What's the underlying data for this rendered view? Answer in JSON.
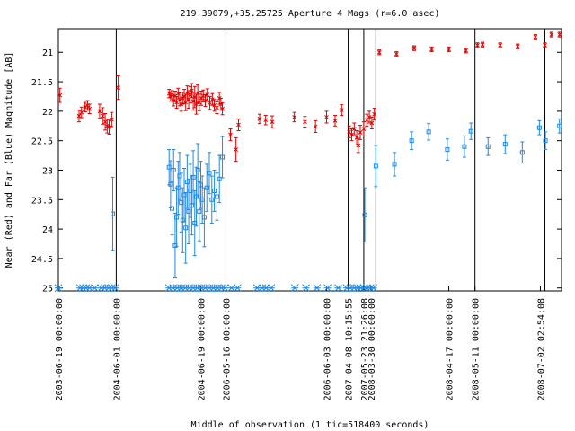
{
  "chart_data": {
    "type": "scatter",
    "title": "219.39079,+35.25725   Aperture 4 Mags (r=6.0 asec)",
    "xlabel": "Middle of observation (1 tic=518400 seconds)",
    "ylabel": "Near (Red) and Far (Blue) Magnitude [AB]",
    "ylim": [
      25.05,
      20.6
    ],
    "y_ticks": [
      21,
      21.5,
      22,
      22.5,
      23,
      23.5,
      24,
      24.5,
      25
    ],
    "x_range": [
      0,
      100
    ],
    "grid": false,
    "legend": "none",
    "colors": {
      "near": "#e00000",
      "far": "#1e88e5"
    },
    "x_tick_labels": [
      {
        "x": 0,
        "label": "2003-06-19 00:00:00"
      },
      {
        "x": 11.5,
        "label": "2004-06-01 00:00:00"
      },
      {
        "x": 28.3,
        "label": "2004-06-19 00:00:00"
      },
      {
        "x": 33.3,
        "label": "2006-05-16 00:00:00"
      },
      {
        "x": 53.3,
        "label": "2006-06-03 00:00:00"
      },
      {
        "x": 57.6,
        "label": "2007-04-08 10:15:55"
      },
      {
        "x": 60.7,
        "label": "2007-05-23 21:26:08"
      },
      {
        "x": 62.1,
        "label": "2008-03-30 00:00:00"
      },
      {
        "x": 77.6,
        "label": "2008-04-17 00:00:00"
      },
      {
        "x": 82.8,
        "label": "2008-05-11 00:00:00"
      },
      {
        "x": 95.8,
        "label": "2008-07-02 02:54:08"
      }
    ],
    "vlines": [
      11.5,
      33.3,
      57.6,
      60.7,
      63.1,
      82.8,
      96.7
    ],
    "series": [
      {
        "key": "near",
        "points": [
          [
            0.3,
            21.73,
            0.12
          ],
          [
            4.1,
            22.08,
            0.1
          ],
          [
            4.6,
            22.02,
            0.09
          ],
          [
            5.3,
            21.93,
            0.08
          ],
          [
            5.8,
            21.9,
            0.08
          ],
          [
            6.2,
            21.96,
            0.08
          ],
          [
            8.2,
            22.0,
            0.12
          ],
          [
            8.8,
            22.08,
            0.14
          ],
          [
            9.3,
            22.18,
            0.14
          ],
          [
            9.7,
            22.25,
            0.12
          ],
          [
            10.1,
            22.27,
            0.12
          ],
          [
            10.6,
            22.14,
            0.12
          ],
          [
            11.9,
            21.6,
            0.2
          ],
          [
            22.0,
            21.7,
            0.07
          ],
          [
            22.3,
            21.75,
            0.08
          ],
          [
            22.6,
            21.72,
            0.07
          ],
          [
            22.9,
            21.82,
            0.09
          ],
          [
            23.2,
            21.74,
            0.08
          ],
          [
            23.5,
            21.85,
            0.1
          ],
          [
            23.8,
            21.7,
            0.09
          ],
          [
            24.1,
            21.8,
            0.11
          ],
          [
            24.4,
            21.88,
            0.12
          ],
          [
            24.7,
            21.78,
            0.1
          ],
          [
            25.0,
            21.75,
            0.12
          ],
          [
            25.3,
            21.85,
            0.14
          ],
          [
            25.6,
            21.7,
            0.13
          ],
          [
            25.9,
            21.8,
            0.15
          ],
          [
            26.2,
            21.72,
            0.14
          ],
          [
            26.5,
            21.65,
            0.12
          ],
          [
            26.8,
            21.83,
            0.15
          ],
          [
            27.1,
            21.76,
            0.18
          ],
          [
            27.4,
            21.88,
            0.17
          ],
          [
            27.7,
            21.7,
            0.15
          ],
          [
            28.0,
            21.85,
            0.14
          ],
          [
            28.4,
            21.78,
            0.12
          ],
          [
            28.8,
            21.74,
            0.1
          ],
          [
            29.2,
            21.82,
            0.1
          ],
          [
            29.6,
            21.72,
            0.1
          ],
          [
            30.1,
            21.86,
            0.11
          ],
          [
            30.6,
            21.8,
            0.1
          ],
          [
            31.0,
            21.9,
            0.1
          ],
          [
            31.5,
            21.94,
            0.1
          ],
          [
            32.0,
            21.78,
            0.1
          ],
          [
            32.3,
            21.88,
            0.1
          ],
          [
            32.6,
            21.96,
            0.1
          ],
          [
            34.2,
            22.4,
            0.1
          ],
          [
            35.3,
            22.65,
            0.2
          ],
          [
            35.8,
            22.23,
            0.1
          ],
          [
            40.0,
            22.13,
            0.08
          ],
          [
            41.2,
            22.15,
            0.08
          ],
          [
            42.5,
            22.18,
            0.1
          ],
          [
            46.9,
            22.1,
            0.08
          ],
          [
            49.0,
            22.18,
            0.09
          ],
          [
            51.1,
            22.26,
            0.1
          ],
          [
            53.3,
            22.1,
            0.1
          ],
          [
            55.0,
            22.16,
            0.09
          ],
          [
            56.3,
            21.98,
            0.09
          ],
          [
            57.8,
            22.35,
            0.1
          ],
          [
            58.3,
            22.4,
            0.1
          ],
          [
            58.8,
            22.3,
            0.1
          ],
          [
            59.3,
            22.45,
            0.12
          ],
          [
            59.6,
            22.58,
            0.12
          ],
          [
            60.0,
            22.36,
            0.12
          ],
          [
            60.7,
            22.3,
            0.12
          ],
          [
            61.3,
            22.15,
            0.1
          ],
          [
            61.8,
            22.1,
            0.1
          ],
          [
            62.3,
            22.2,
            0.1
          ],
          [
            62.8,
            22.05,
            0.1
          ],
          [
            63.8,
            21.0,
            0.04
          ],
          [
            67.2,
            21.03,
            0.04
          ],
          [
            70.7,
            20.93,
            0.04
          ],
          [
            74.2,
            20.95,
            0.04
          ],
          [
            77.6,
            20.95,
            0.04
          ],
          [
            81.0,
            20.97,
            0.04
          ],
          [
            83.3,
            20.88,
            0.04
          ],
          [
            84.3,
            20.87,
            0.04
          ],
          [
            87.8,
            20.88,
            0.04
          ],
          [
            91.3,
            20.9,
            0.04
          ],
          [
            94.8,
            20.74,
            0.04
          ],
          [
            96.7,
            20.88,
            0.04
          ],
          [
            98.0,
            20.7,
            0.04
          ],
          [
            99.6,
            20.7,
            0.04
          ]
        ]
      },
      {
        "key": "far",
        "points": [
          [
            10.8,
            23.74,
            0.62
          ],
          [
            22.0,
            22.95,
            0.3
          ],
          [
            22.3,
            23.24,
            0.4
          ],
          [
            22.6,
            23.65,
            0.45
          ],
          [
            22.9,
            23.0,
            0.35
          ],
          [
            23.2,
            24.28,
            0.55
          ],
          [
            23.5,
            23.8,
            0.5
          ],
          [
            23.8,
            23.3,
            0.45
          ],
          [
            24.1,
            23.1,
            0.4
          ],
          [
            24.4,
            23.55,
            0.5
          ],
          [
            24.7,
            23.85,
            0.55
          ],
          [
            25.0,
            23.42,
            0.45
          ],
          [
            25.3,
            23.98,
            0.6
          ],
          [
            25.6,
            23.2,
            0.45
          ],
          [
            25.9,
            23.7,
            0.55
          ],
          [
            26.2,
            23.35,
            0.45
          ],
          [
            26.5,
            23.6,
            0.5
          ],
          [
            26.8,
            23.12,
            0.45
          ],
          [
            27.1,
            23.9,
            0.55
          ],
          [
            27.4,
            23.45,
            0.5
          ],
          [
            27.7,
            23.0,
            0.45
          ],
          [
            28.0,
            23.7,
            0.5
          ],
          [
            28.3,
            23.25,
            0.4
          ],
          [
            28.6,
            23.5,
            0.4
          ],
          [
            29.0,
            23.8,
            0.5
          ],
          [
            29.5,
            23.3,
            0.4
          ],
          [
            30.0,
            23.05,
            0.35
          ],
          [
            30.5,
            23.5,
            0.4
          ],
          [
            31.0,
            23.35,
            0.35
          ],
          [
            31.5,
            23.45,
            0.4
          ],
          [
            32.0,
            23.15,
            0.4
          ],
          [
            32.6,
            22.78,
            0.35
          ],
          [
            60.9,
            23.76,
            0.46
          ],
          [
            63.1,
            22.93,
            0.35
          ],
          [
            66.8,
            22.9,
            0.2
          ],
          [
            70.2,
            22.5,
            0.15
          ],
          [
            73.6,
            22.35,
            0.14
          ],
          [
            77.3,
            22.65,
            0.18
          ],
          [
            80.7,
            22.6,
            0.18
          ],
          [
            82.0,
            22.34,
            0.14
          ],
          [
            85.4,
            22.6,
            0.15
          ],
          [
            88.8,
            22.56,
            0.16
          ],
          [
            92.2,
            22.7,
            0.18
          ],
          [
            95.6,
            22.28,
            0.12
          ],
          [
            96.8,
            22.5,
            0.15
          ],
          [
            99.6,
            22.25,
            0.12
          ]
        ]
      },
      {
        "key": "far_limits",
        "points": [
          [
            0.0,
            25.0
          ],
          [
            4.3,
            25.0
          ],
          [
            4.9,
            25.0
          ],
          [
            5.5,
            25.0
          ],
          [
            6.2,
            25.0
          ],
          [
            7.2,
            25.0
          ],
          [
            8.5,
            25.0
          ],
          [
            9.2,
            25.0
          ],
          [
            10.0,
            25.0
          ],
          [
            10.6,
            25.0
          ],
          [
            11.3,
            25.0
          ],
          [
            22.0,
            25.0
          ],
          [
            22.8,
            25.0
          ],
          [
            23.6,
            25.0
          ],
          [
            24.4,
            25.0
          ],
          [
            25.2,
            25.0
          ],
          [
            26.0,
            25.0
          ],
          [
            26.8,
            25.0
          ],
          [
            27.6,
            25.0
          ],
          [
            28.4,
            25.0
          ],
          [
            29.2,
            25.0
          ],
          [
            30.0,
            25.0
          ],
          [
            30.8,
            25.0
          ],
          [
            31.6,
            25.0
          ],
          [
            32.4,
            25.0
          ],
          [
            33.1,
            25.0
          ],
          [
            34.4,
            25.0
          ],
          [
            35.6,
            25.0
          ],
          [
            39.5,
            25.0
          ],
          [
            40.5,
            25.0
          ],
          [
            41.3,
            25.0
          ],
          [
            42.3,
            25.0
          ],
          [
            47.0,
            25.0
          ],
          [
            49.2,
            25.0
          ],
          [
            51.4,
            25.0
          ],
          [
            53.5,
            25.0
          ],
          [
            55.6,
            25.0
          ],
          [
            57.3,
            25.0
          ],
          [
            58.0,
            25.0
          ],
          [
            58.8,
            25.0
          ],
          [
            59.5,
            25.0
          ],
          [
            60.1,
            25.0
          ],
          [
            60.7,
            25.0
          ],
          [
            61.3,
            25.0
          ],
          [
            62.0,
            25.0
          ],
          [
            62.6,
            25.0
          ]
        ]
      }
    ]
  }
}
